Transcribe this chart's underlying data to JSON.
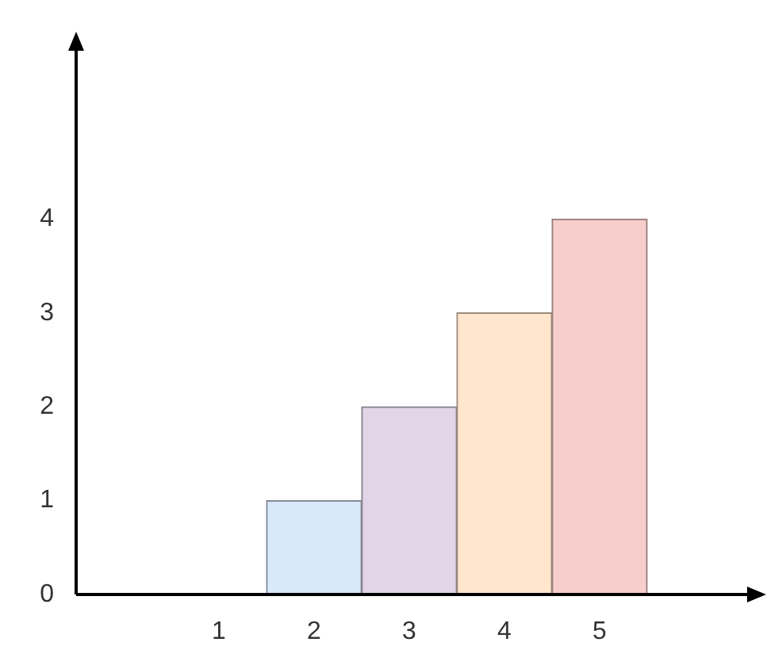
{
  "chart_data": {
    "type": "bar",
    "categories": [
      null,
      "1",
      "2",
      "3",
      "4",
      "5",
      null
    ],
    "values": [
      null,
      0,
      1,
      2,
      3,
      4,
      null
    ],
    "colors": [
      null,
      null,
      "#dae8fc",
      "#e1d5e7",
      "#ffe6cc",
      "#f8cecc",
      null
    ],
    "ylim": [
      0,
      5.8
    ],
    "yticks": [
      0,
      1,
      2,
      3,
      4
    ],
    "grid": false,
    "legend": false
  }
}
